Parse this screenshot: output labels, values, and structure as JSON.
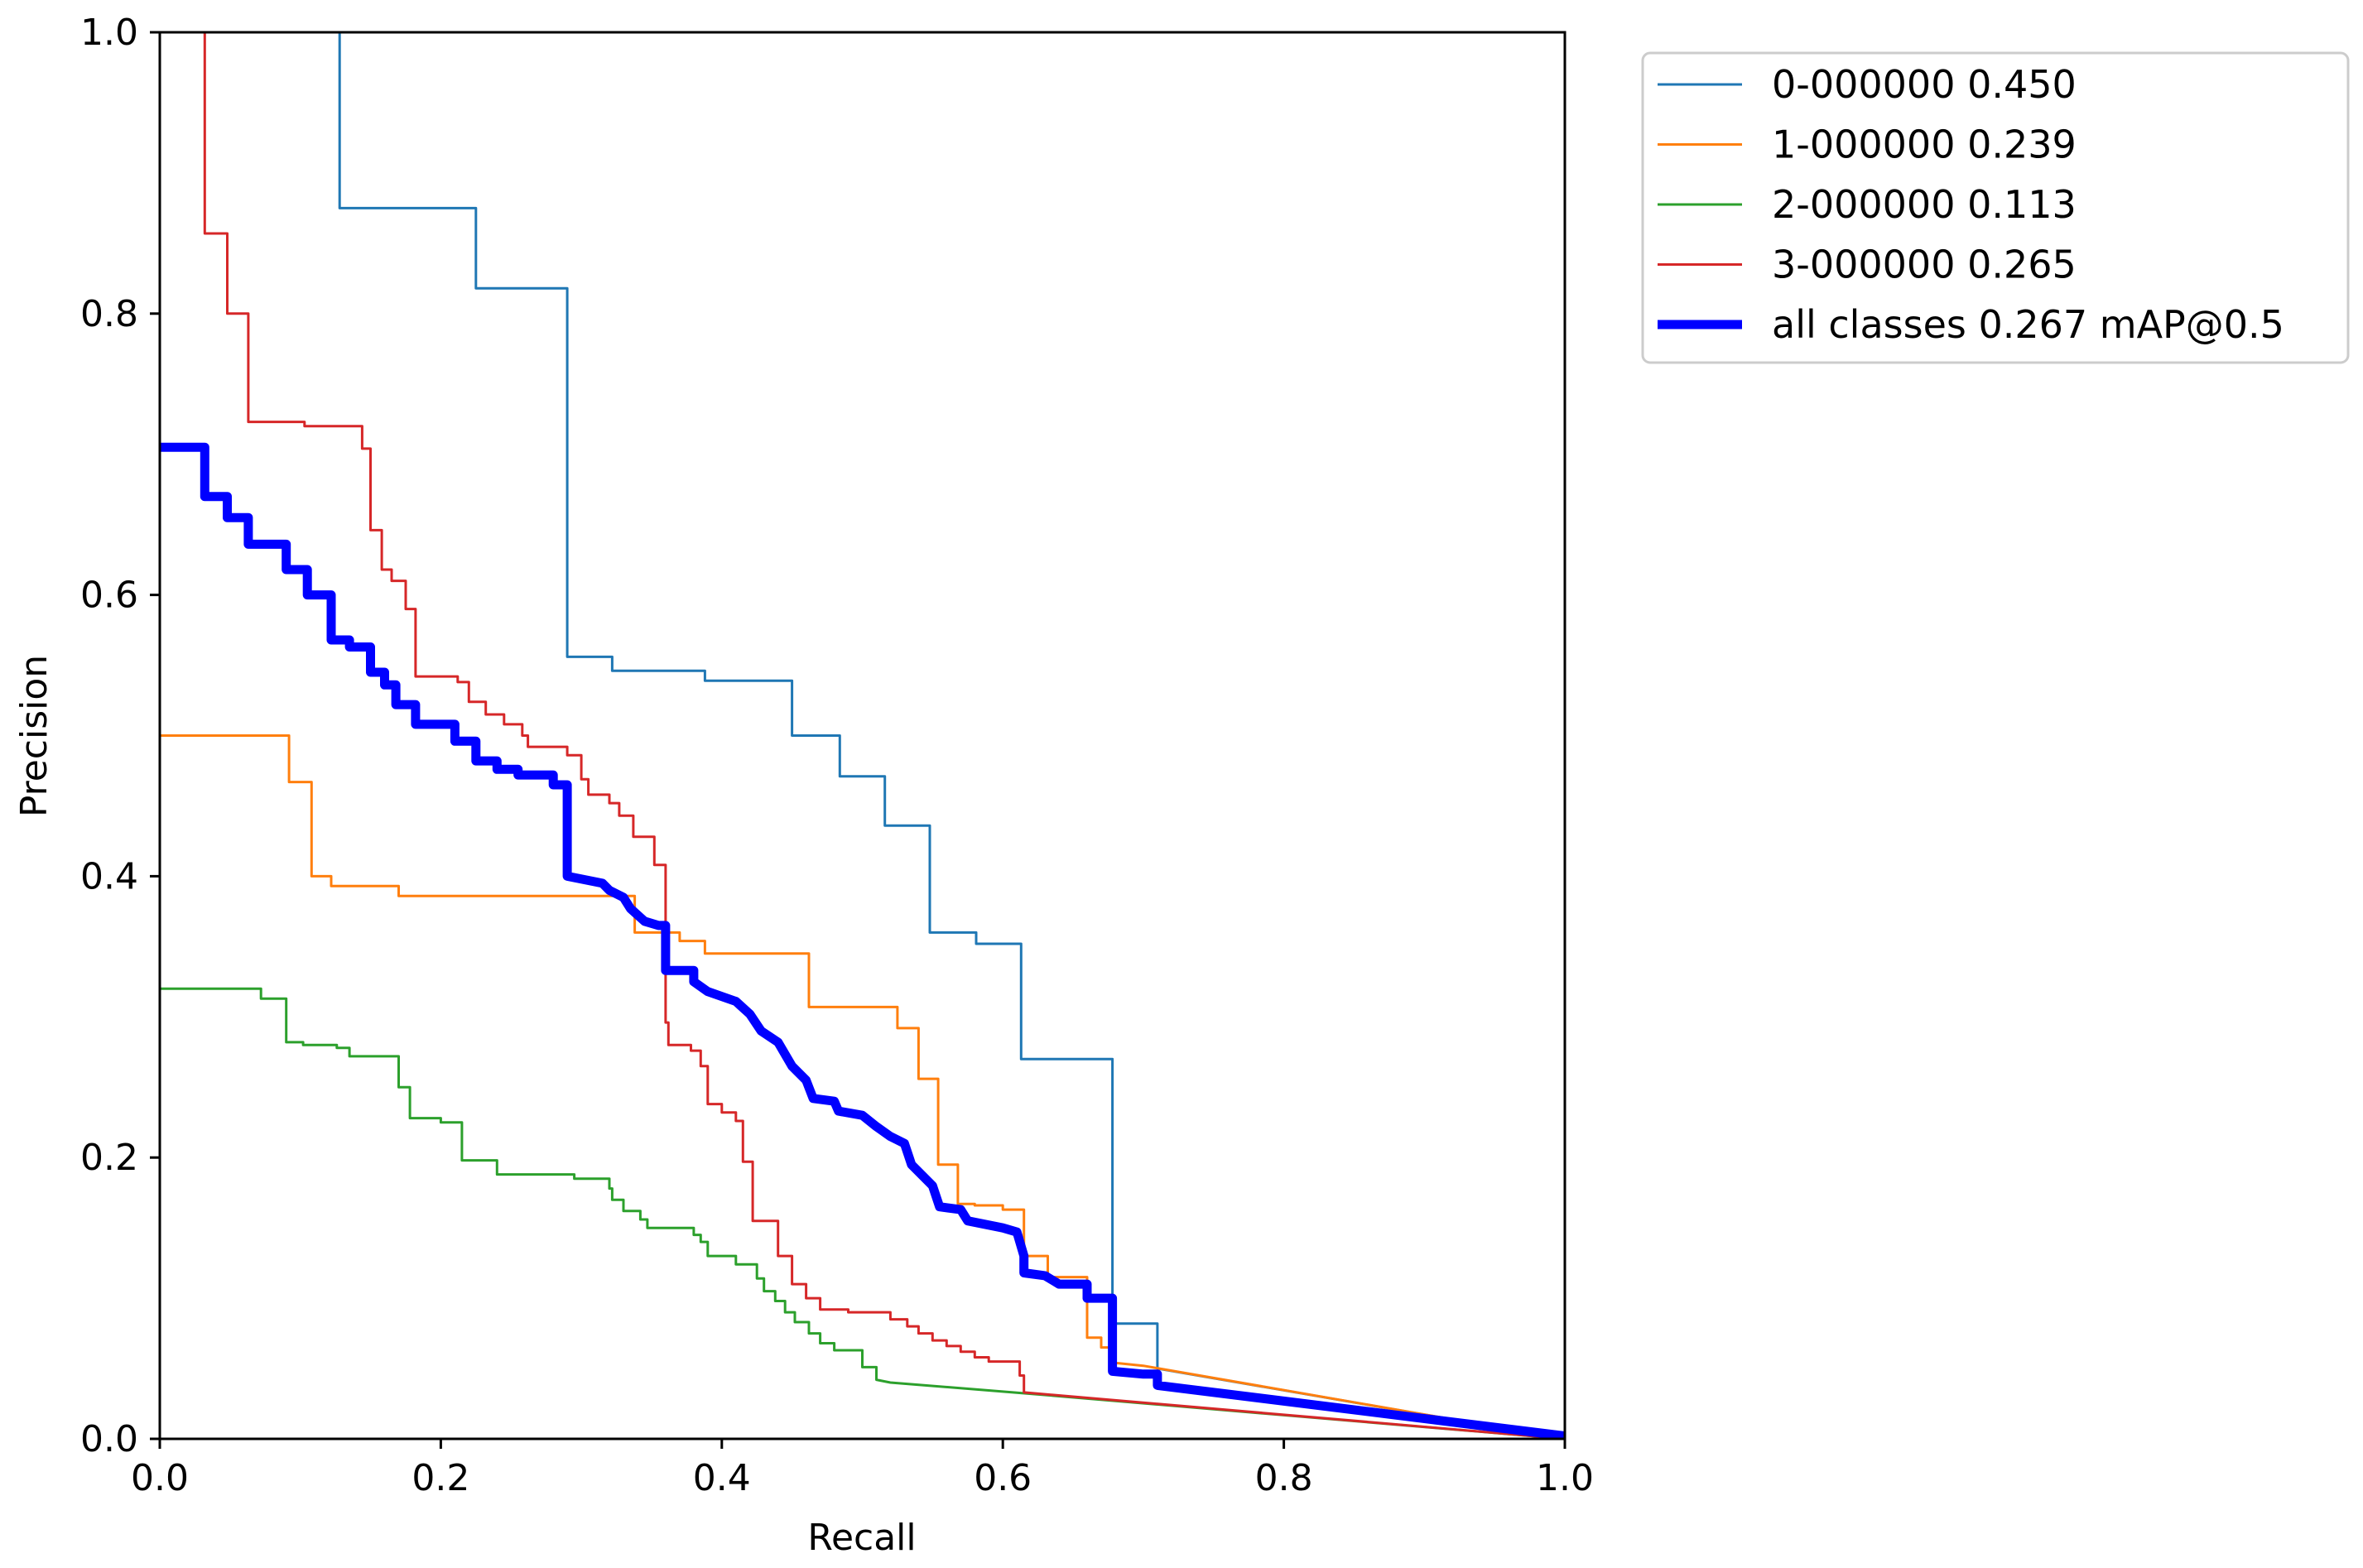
{
  "chart_data": {
    "type": "line",
    "title": "",
    "xlabel": "Recall",
    "ylabel": "Precision",
    "xlim": [
      0,
      1
    ],
    "ylim": [
      0,
      1
    ],
    "grid": false,
    "legend_position": "outside-top-right",
    "x_ticks": [
      "0.0",
      "0.2",
      "0.4",
      "0.6",
      "0.8",
      "1.0"
    ],
    "y_ticks": [
      "0.0",
      "0.2",
      "0.4",
      "0.6",
      "0.8",
      "1.0"
    ],
    "series": [
      {
        "name": "0-000000 0.450",
        "color": "#1f77b4",
        "width": "thin",
        "points": [
          [
            0.128,
            1.0
          ],
          [
            0.128,
            0.875
          ],
          [
            0.225,
            0.875
          ],
          [
            0.225,
            0.818
          ],
          [
            0.29,
            0.818
          ],
          [
            0.29,
            0.556
          ],
          [
            0.322,
            0.556
          ],
          [
            0.322,
            0.546
          ],
          [
            0.388,
            0.546
          ],
          [
            0.388,
            0.539
          ],
          [
            0.45,
            0.539
          ],
          [
            0.45,
            0.5
          ],
          [
            0.484,
            0.5
          ],
          [
            0.484,
            0.471
          ],
          [
            0.516,
            0.471
          ],
          [
            0.516,
            0.436
          ],
          [
            0.548,
            0.436
          ],
          [
            0.548,
            0.36
          ],
          [
            0.581,
            0.36
          ],
          [
            0.581,
            0.352
          ],
          [
            0.613,
            0.352
          ],
          [
            0.613,
            0.27
          ],
          [
            0.678,
            0.27
          ],
          [
            0.678,
            0.082
          ],
          [
            0.71,
            0.082
          ],
          [
            0.71,
            0.05
          ],
          [
            1.0,
            0.0
          ]
        ]
      },
      {
        "name": "1-000000 0.239",
        "color": "#ff7f0e",
        "width": "thin",
        "points": [
          [
            0.0,
            0.5
          ],
          [
            0.092,
            0.5
          ],
          [
            0.092,
            0.467
          ],
          [
            0.108,
            0.467
          ],
          [
            0.108,
            0.4
          ],
          [
            0.122,
            0.4
          ],
          [
            0.122,
            0.393
          ],
          [
            0.17,
            0.393
          ],
          [
            0.17,
            0.386
          ],
          [
            0.338,
            0.386
          ],
          [
            0.338,
            0.375
          ],
          [
            0.338,
            0.36
          ],
          [
            0.37,
            0.36
          ],
          [
            0.37,
            0.354
          ],
          [
            0.388,
            0.354
          ],
          [
            0.388,
            0.345
          ],
          [
            0.462,
            0.345
          ],
          [
            0.462,
            0.307
          ],
          [
            0.525,
            0.307
          ],
          [
            0.525,
            0.292
          ],
          [
            0.54,
            0.292
          ],
          [
            0.54,
            0.256
          ],
          [
            0.554,
            0.256
          ],
          [
            0.554,
            0.195
          ],
          [
            0.568,
            0.195
          ],
          [
            0.568,
            0.167
          ],
          [
            0.58,
            0.167
          ],
          [
            0.58,
            0.166
          ],
          [
            0.6,
            0.166
          ],
          [
            0.6,
            0.163
          ],
          [
            0.615,
            0.163
          ],
          [
            0.615,
            0.13
          ],
          [
            0.632,
            0.13
          ],
          [
            0.632,
            0.115
          ],
          [
            0.66,
            0.115
          ],
          [
            0.66,
            0.072
          ],
          [
            0.67,
            0.072
          ],
          [
            0.67,
            0.065
          ],
          [
            0.68,
            0.065
          ],
          [
            0.68,
            0.054
          ],
          [
            0.7,
            0.052
          ],
          [
            1.0,
            0.0
          ]
        ]
      },
      {
        "name": "2-000000 0.113",
        "color": "#2ca02c",
        "width": "thin",
        "points": [
          [
            0.0,
            0.32
          ],
          [
            0.072,
            0.32
          ],
          [
            0.072,
            0.313
          ],
          [
            0.09,
            0.313
          ],
          [
            0.09,
            0.282
          ],
          [
            0.102,
            0.282
          ],
          [
            0.102,
            0.28
          ],
          [
            0.126,
            0.28
          ],
          [
            0.126,
            0.278
          ],
          [
            0.135,
            0.278
          ],
          [
            0.135,
            0.272
          ],
          [
            0.17,
            0.272
          ],
          [
            0.17,
            0.25
          ],
          [
            0.178,
            0.25
          ],
          [
            0.178,
            0.228
          ],
          [
            0.2,
            0.228
          ],
          [
            0.2,
            0.225
          ],
          [
            0.215,
            0.225
          ],
          [
            0.215,
            0.198
          ],
          [
            0.24,
            0.198
          ],
          [
            0.24,
            0.188
          ],
          [
            0.295,
            0.188
          ],
          [
            0.295,
            0.185
          ],
          [
            0.32,
            0.185
          ],
          [
            0.32,
            0.178
          ],
          [
            0.322,
            0.178
          ],
          [
            0.322,
            0.17
          ],
          [
            0.33,
            0.17
          ],
          [
            0.33,
            0.162
          ],
          [
            0.342,
            0.162
          ],
          [
            0.342,
            0.156
          ],
          [
            0.347,
            0.156
          ],
          [
            0.347,
            0.15
          ],
          [
            0.38,
            0.15
          ],
          [
            0.38,
            0.145
          ],
          [
            0.385,
            0.145
          ],
          [
            0.385,
            0.14
          ],
          [
            0.39,
            0.14
          ],
          [
            0.39,
            0.13
          ],
          [
            0.41,
            0.13
          ],
          [
            0.41,
            0.124
          ],
          [
            0.425,
            0.124
          ],
          [
            0.425,
            0.114
          ],
          [
            0.43,
            0.114
          ],
          [
            0.43,
            0.105
          ],
          [
            0.438,
            0.105
          ],
          [
            0.438,
            0.098
          ],
          [
            0.445,
            0.098
          ],
          [
            0.445,
            0.09
          ],
          [
            0.452,
            0.09
          ],
          [
            0.452,
            0.083
          ],
          [
            0.462,
            0.083
          ],
          [
            0.462,
            0.075
          ],
          [
            0.47,
            0.075
          ],
          [
            0.47,
            0.068
          ],
          [
            0.48,
            0.068
          ],
          [
            0.48,
            0.063
          ],
          [
            0.5,
            0.063
          ],
          [
            0.5,
            0.051
          ],
          [
            0.51,
            0.051
          ],
          [
            0.51,
            0.042
          ],
          [
            0.52,
            0.04
          ],
          [
            0.62,
            0.032
          ],
          [
            1.0,
            0.0
          ]
        ]
      },
      {
        "name": "3-000000 0.265",
        "color": "#d62728",
        "width": "thin",
        "points": [
          [
            0.032,
            1.0
          ],
          [
            0.032,
            0.857
          ],
          [
            0.048,
            0.857
          ],
          [
            0.048,
            0.8
          ],
          [
            0.063,
            0.8
          ],
          [
            0.063,
            0.723
          ],
          [
            0.103,
            0.723
          ],
          [
            0.103,
            0.72
          ],
          [
            0.144,
            0.72
          ],
          [
            0.144,
            0.704
          ],
          [
            0.15,
            0.704
          ],
          [
            0.15,
            0.646
          ],
          [
            0.158,
            0.646
          ],
          [
            0.158,
            0.618
          ],
          [
            0.165,
            0.618
          ],
          [
            0.165,
            0.61
          ],
          [
            0.175,
            0.61
          ],
          [
            0.175,
            0.59
          ],
          [
            0.182,
            0.59
          ],
          [
            0.182,
            0.542
          ],
          [
            0.212,
            0.542
          ],
          [
            0.212,
            0.538
          ],
          [
            0.22,
            0.538
          ],
          [
            0.22,
            0.524
          ],
          [
            0.232,
            0.524
          ],
          [
            0.232,
            0.515
          ],
          [
            0.245,
            0.515
          ],
          [
            0.245,
            0.508
          ],
          [
            0.258,
            0.508
          ],
          [
            0.258,
            0.5
          ],
          [
            0.262,
            0.5
          ],
          [
            0.262,
            0.492
          ],
          [
            0.29,
            0.492
          ],
          [
            0.29,
            0.486
          ],
          [
            0.3,
            0.486
          ],
          [
            0.3,
            0.469
          ],
          [
            0.305,
            0.469
          ],
          [
            0.305,
            0.458
          ],
          [
            0.32,
            0.458
          ],
          [
            0.32,
            0.452
          ],
          [
            0.327,
            0.452
          ],
          [
            0.327,
            0.443
          ],
          [
            0.337,
            0.443
          ],
          [
            0.337,
            0.428
          ],
          [
            0.352,
            0.428
          ],
          [
            0.352,
            0.408
          ],
          [
            0.36,
            0.408
          ],
          [
            0.36,
            0.296
          ],
          [
            0.362,
            0.296
          ],
          [
            0.362,
            0.28
          ],
          [
            0.378,
            0.28
          ],
          [
            0.378,
            0.276
          ],
          [
            0.385,
            0.276
          ],
          [
            0.385,
            0.265
          ],
          [
            0.39,
            0.265
          ],
          [
            0.39,
            0.238
          ],
          [
            0.4,
            0.238
          ],
          [
            0.4,
            0.232
          ],
          [
            0.41,
            0.232
          ],
          [
            0.41,
            0.226
          ],
          [
            0.415,
            0.226
          ],
          [
            0.415,
            0.197
          ],
          [
            0.422,
            0.197
          ],
          [
            0.422,
            0.155
          ],
          [
            0.44,
            0.155
          ],
          [
            0.44,
            0.13
          ],
          [
            0.45,
            0.13
          ],
          [
            0.45,
            0.11
          ],
          [
            0.46,
            0.11
          ],
          [
            0.46,
            0.1
          ],
          [
            0.47,
            0.1
          ],
          [
            0.47,
            0.092
          ],
          [
            0.49,
            0.092
          ],
          [
            0.49,
            0.09
          ],
          [
            0.52,
            0.09
          ],
          [
            0.52,
            0.085
          ],
          [
            0.532,
            0.085
          ],
          [
            0.532,
            0.08
          ],
          [
            0.54,
            0.08
          ],
          [
            0.54,
            0.075
          ],
          [
            0.55,
            0.075
          ],
          [
            0.55,
            0.07
          ],
          [
            0.56,
            0.07
          ],
          [
            0.56,
            0.066
          ],
          [
            0.57,
            0.066
          ],
          [
            0.57,
            0.062
          ],
          [
            0.58,
            0.062
          ],
          [
            0.58,
            0.058
          ],
          [
            0.59,
            0.058
          ],
          [
            0.59,
            0.055
          ],
          [
            0.612,
            0.055
          ],
          [
            0.612,
            0.045
          ],
          [
            0.615,
            0.045
          ],
          [
            0.615,
            0.033
          ],
          [
            1.0,
            0.0
          ]
        ]
      },
      {
        "name": "all classes 0.267 mAP@0.5",
        "color": "#0000ff",
        "width": "thick",
        "points": [
          [
            0.0,
            0.705
          ],
          [
            0.032,
            0.705
          ],
          [
            0.032,
            0.67
          ],
          [
            0.048,
            0.67
          ],
          [
            0.048,
            0.655
          ],
          [
            0.063,
            0.655
          ],
          [
            0.063,
            0.636
          ],
          [
            0.09,
            0.636
          ],
          [
            0.09,
            0.618
          ],
          [
            0.105,
            0.618
          ],
          [
            0.105,
            0.6
          ],
          [
            0.122,
            0.6
          ],
          [
            0.122,
            0.568
          ],
          [
            0.135,
            0.568
          ],
          [
            0.135,
            0.563
          ],
          [
            0.15,
            0.563
          ],
          [
            0.15,
            0.545
          ],
          [
            0.16,
            0.545
          ],
          [
            0.16,
            0.536
          ],
          [
            0.168,
            0.536
          ],
          [
            0.168,
            0.522
          ],
          [
            0.182,
            0.522
          ],
          [
            0.182,
            0.508
          ],
          [
            0.21,
            0.508
          ],
          [
            0.21,
            0.496
          ],
          [
            0.225,
            0.496
          ],
          [
            0.225,
            0.482
          ],
          [
            0.24,
            0.482
          ],
          [
            0.24,
            0.476
          ],
          [
            0.255,
            0.476
          ],
          [
            0.255,
            0.472
          ],
          [
            0.28,
            0.472
          ],
          [
            0.28,
            0.465
          ],
          [
            0.29,
            0.465
          ],
          [
            0.29,
            0.4
          ],
          [
            0.315,
            0.395
          ],
          [
            0.32,
            0.39
          ],
          [
            0.33,
            0.385
          ],
          [
            0.335,
            0.377
          ],
          [
            0.345,
            0.368
          ],
          [
            0.355,
            0.365
          ],
          [
            0.36,
            0.365
          ],
          [
            0.36,
            0.333
          ],
          [
            0.38,
            0.333
          ],
          [
            0.38,
            0.325
          ],
          [
            0.39,
            0.318
          ],
          [
            0.41,
            0.311
          ],
          [
            0.42,
            0.302
          ],
          [
            0.428,
            0.29
          ],
          [
            0.44,
            0.282
          ],
          [
            0.45,
            0.265
          ],
          [
            0.46,
            0.255
          ],
          [
            0.465,
            0.242
          ],
          [
            0.48,
            0.24
          ],
          [
            0.483,
            0.233
          ],
          [
            0.5,
            0.23
          ],
          [
            0.51,
            0.222
          ],
          [
            0.52,
            0.215
          ],
          [
            0.53,
            0.21
          ],
          [
            0.535,
            0.195
          ],
          [
            0.55,
            0.18
          ],
          [
            0.555,
            0.165
          ],
          [
            0.57,
            0.163
          ],
          [
            0.575,
            0.155
          ],
          [
            0.6,
            0.15
          ],
          [
            0.61,
            0.147
          ],
          [
            0.615,
            0.13
          ],
          [
            0.615,
            0.118
          ],
          [
            0.63,
            0.116
          ],
          [
            0.64,
            0.11
          ],
          [
            0.66,
            0.11
          ],
          [
            0.66,
            0.1
          ],
          [
            0.678,
            0.1
          ],
          [
            0.678,
            0.048
          ],
          [
            0.7,
            0.046
          ],
          [
            0.71,
            0.046
          ],
          [
            0.71,
            0.038
          ],
          [
            1.0,
            0.002
          ]
        ]
      }
    ]
  }
}
